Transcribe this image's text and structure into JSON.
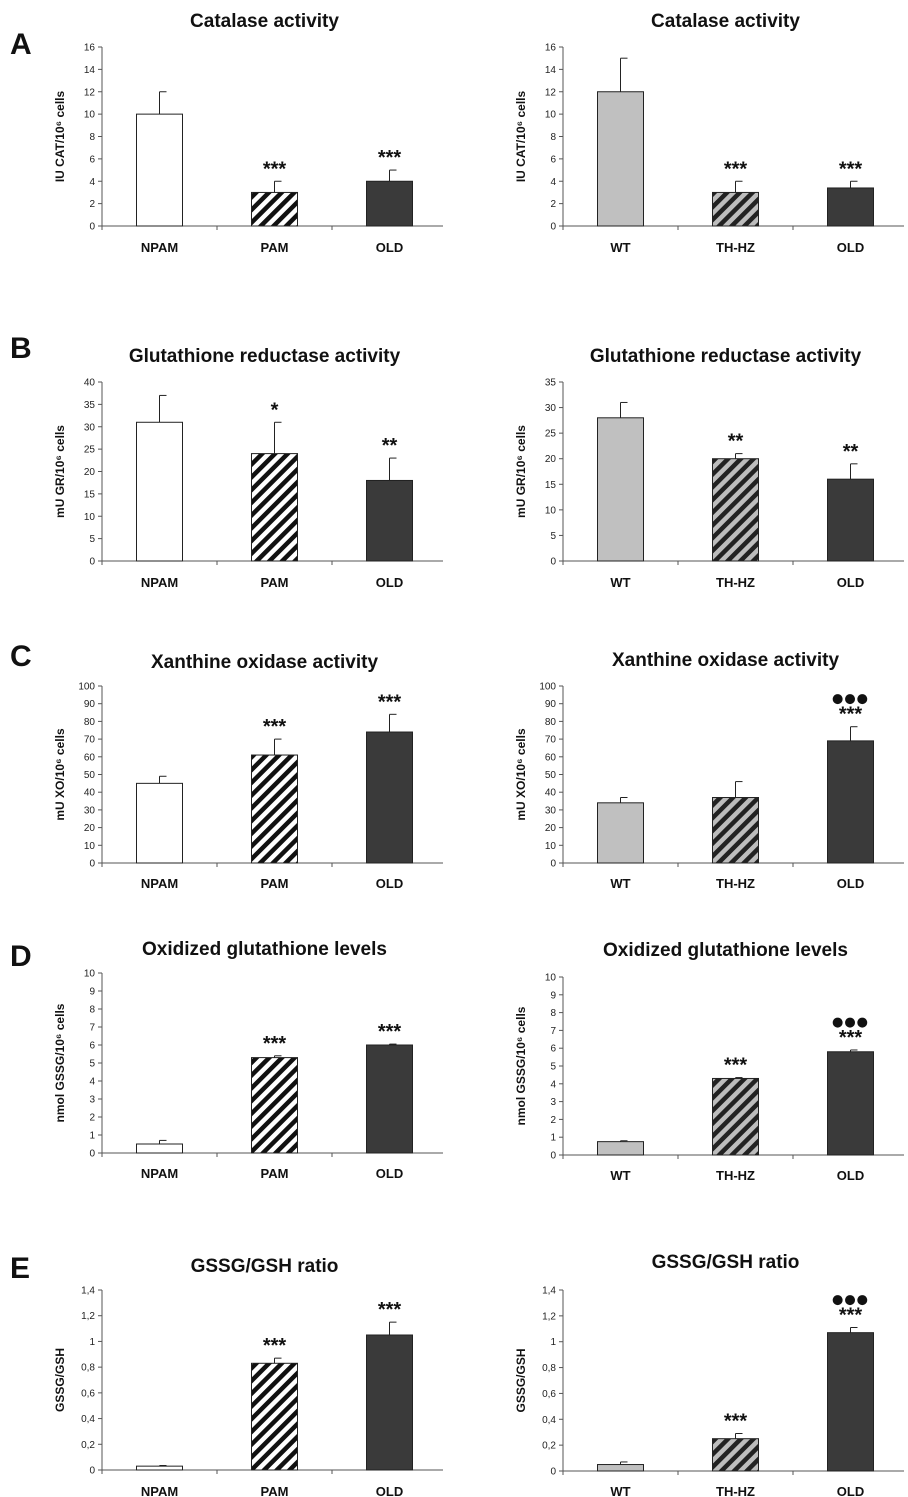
{
  "colors": {
    "white_fill": "#ffffff",
    "grey_fill": "#c0c0c0",
    "dark_fill": "#3a3a3a",
    "hatch_bg": "#ffffff",
    "hatch_bg_grey": "#bdbdbd",
    "stroke": "#222222"
  },
  "panels": [
    "A",
    "B",
    "C",
    "D",
    "E"
  ],
  "chart_data": [
    {
      "type": "bar",
      "panel": "A",
      "title": "Catalase activity",
      "ylabel": "IU CAT/10⁶ cells",
      "categories": [
        "NPAM",
        "PAM",
        "OLD"
      ],
      "values": [
        10,
        3,
        4
      ],
      "errors": [
        2,
        1,
        1
      ],
      "fills": [
        "white",
        "hatch",
        "dark"
      ],
      "sig": [
        "",
        "***",
        "***"
      ],
      "dots": [
        "",
        "",
        ""
      ],
      "ylim": [
        0,
        16
      ],
      "yticks": [
        "0",
        "2",
        "4",
        "6",
        "8",
        "10",
        "12",
        "14",
        "16"
      ]
    },
    {
      "type": "bar",
      "panel": "A",
      "title": "Catalase activity",
      "ylabel": "IU CAT/10⁶ cells",
      "categories": [
        "WT",
        "TH-HZ",
        "OLD"
      ],
      "values": [
        12,
        3,
        3.4
      ],
      "errors": [
        3,
        1,
        0.6
      ],
      "fills": [
        "grey",
        "hatch-grey",
        "dark"
      ],
      "sig": [
        "",
        "***",
        "***"
      ],
      "dots": [
        "",
        "",
        ""
      ],
      "ylim": [
        0,
        16
      ],
      "yticks": [
        "0",
        "2",
        "4",
        "6",
        "8",
        "10",
        "12",
        "14",
        "16"
      ]
    },
    {
      "type": "bar",
      "panel": "B",
      "title": "Glutathione reductase activity",
      "ylabel": "mU GR/10⁶ cells",
      "categories": [
        "NPAM",
        "PAM",
        "OLD"
      ],
      "values": [
        31,
        24,
        18
      ],
      "errors": [
        6,
        7,
        5
      ],
      "fills": [
        "white",
        "hatch",
        "dark"
      ],
      "sig": [
        "",
        "*",
        "**"
      ],
      "dots": [
        "",
        "",
        ""
      ],
      "ylim": [
        0,
        40
      ],
      "yticks": [
        "0",
        "5",
        "10",
        "15",
        "20",
        "25",
        "30",
        "35",
        "40"
      ]
    },
    {
      "type": "bar",
      "panel": "B",
      "title": "Glutathione reductase activity",
      "ylabel": "mU GR/10⁶ cells",
      "categories": [
        "WT",
        "TH-HZ",
        "OLD"
      ],
      "values": [
        28,
        20,
        16
      ],
      "errors": [
        3,
        1,
        3
      ],
      "fills": [
        "grey",
        "hatch-grey",
        "dark"
      ],
      "sig": [
        "",
        "**",
        "**"
      ],
      "dots": [
        "",
        "",
        ""
      ],
      "ylim": [
        0,
        35
      ],
      "yticks": [
        "0",
        "5",
        "10",
        "15",
        "20",
        "25",
        "30",
        "35"
      ]
    },
    {
      "type": "bar",
      "panel": "C",
      "title": "Xanthine oxidase activity",
      "ylabel": "mU XO/10⁶ cells",
      "categories": [
        "NPAM",
        "PAM",
        "OLD"
      ],
      "values": [
        45,
        61,
        74
      ],
      "errors": [
        4,
        9,
        10
      ],
      "fills": [
        "white",
        "hatch",
        "dark"
      ],
      "sig": [
        "",
        "***",
        "***"
      ],
      "dots": [
        "",
        "",
        ""
      ],
      "ylim": [
        0,
        100
      ],
      "yticks": [
        "0",
        "10",
        "20",
        "30",
        "40",
        "50",
        "60",
        "70",
        "80",
        "90",
        "100"
      ]
    },
    {
      "type": "bar",
      "panel": "C",
      "title": "Xanthine oxidase activity",
      "ylabel": "mU XO/10⁶ cells",
      "categories": [
        "WT",
        "TH-HZ",
        "OLD"
      ],
      "values": [
        34,
        37,
        69
      ],
      "errors": [
        3,
        9,
        8
      ],
      "fills": [
        "grey",
        "hatch-grey",
        "dark"
      ],
      "sig": [
        "",
        "",
        "***"
      ],
      "dots": [
        "",
        "",
        "●●●"
      ],
      "ylim": [
        0,
        100
      ],
      "yticks": [
        "0",
        "10",
        "20",
        "30",
        "40",
        "50",
        "60",
        "70",
        "80",
        "90",
        "100"
      ]
    },
    {
      "type": "bar",
      "panel": "D",
      "title": "Oxidized glutathione levels",
      "ylabel": "nmol GSSG/10⁶ cells",
      "categories": [
        "NPAM",
        "PAM",
        "OLD"
      ],
      "values": [
        0.5,
        5.3,
        6.0
      ],
      "errors": [
        0.2,
        0.1,
        0.05
      ],
      "fills": [
        "white",
        "hatch",
        "dark"
      ],
      "sig": [
        "",
        "***",
        "***"
      ],
      "dots": [
        "",
        "",
        ""
      ],
      "ylim": [
        0,
        10
      ],
      "yticks": [
        "0",
        "1",
        "2",
        "3",
        "4",
        "5",
        "6",
        "7",
        "8",
        "9",
        "10"
      ]
    },
    {
      "type": "bar",
      "panel": "D",
      "title": "Oxidized glutathione levels",
      "ylabel": "nmol GSSG/10⁶ cells",
      "categories": [
        "WT",
        "TH-HZ",
        "OLD"
      ],
      "values": [
        0.75,
        4.3,
        5.8
      ],
      "errors": [
        0.05,
        0.05,
        0.1
      ],
      "fills": [
        "grey",
        "hatch-grey",
        "dark"
      ],
      "sig": [
        "",
        "***",
        "***"
      ],
      "dots": [
        "",
        "",
        "●●●"
      ],
      "ylim": [
        0,
        10
      ],
      "yticks": [
        "0",
        "1",
        "2",
        "3",
        "4",
        "5",
        "6",
        "7",
        "8",
        "9",
        "10"
      ]
    },
    {
      "type": "bar",
      "panel": "E",
      "title": "GSSG/GSH ratio",
      "ylabel": "GSSG/GSH",
      "categories": [
        "NPAM",
        "PAM",
        "OLD"
      ],
      "values": [
        0.03,
        0.83,
        1.05
      ],
      "errors": [
        0.005,
        0.04,
        0.1
      ],
      "fills": [
        "white",
        "hatch",
        "dark"
      ],
      "sig": [
        "",
        "***",
        "***"
      ],
      "dots": [
        "",
        "",
        ""
      ],
      "ylim": [
        0,
        1.4
      ],
      "yticks": [
        "0",
        "0,2",
        "0,4",
        "0,6",
        "0,8",
        "1",
        "1,2",
        "1,4"
      ]
    },
    {
      "type": "bar",
      "panel": "E",
      "title": "GSSG/GSH ratio",
      "ylabel": "GSSG/GSH",
      "categories": [
        "WT",
        "TH-HZ",
        "OLD"
      ],
      "values": [
        0.05,
        0.25,
        1.07
      ],
      "errors": [
        0.02,
        0.04,
        0.04
      ],
      "fills": [
        "grey",
        "hatch-grey",
        "dark"
      ],
      "sig": [
        "",
        "***",
        "***"
      ],
      "dots": [
        "",
        "",
        "●●●"
      ],
      "ylim": [
        0,
        1.4
      ],
      "yticks": [
        "0",
        "0,2",
        "0,4",
        "0,6",
        "0,8",
        "1",
        "1,2",
        "1,4"
      ]
    }
  ]
}
